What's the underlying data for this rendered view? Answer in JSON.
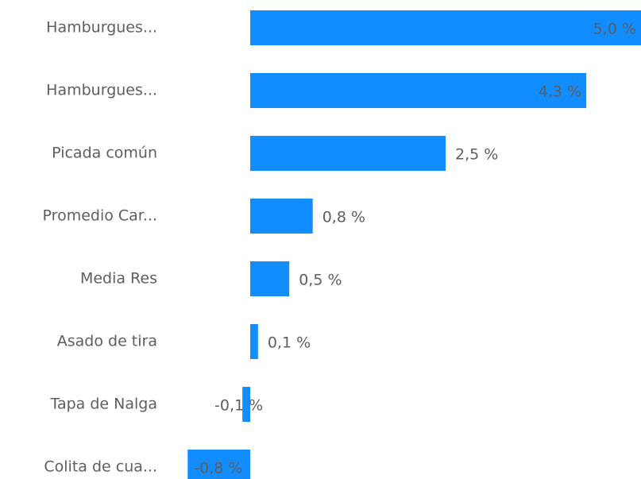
{
  "chart_data": {
    "type": "hbar",
    "categories": [
      "Hamburgues...",
      "Hamburgues...",
      "Picada común",
      "Promedio Car...",
      "Media Res",
      "Asado de tira",
      "Tapa de Nalga",
      "Colita de cua..."
    ],
    "values": [
      5.0,
      4.3,
      2.5,
      0.8,
      0.5,
      0.1,
      -0.1,
      -0.8
    ],
    "value_labels": [
      "5,0 %",
      "4,3 %",
      "2,5 %",
      "0,8 %",
      "0,5 %",
      "0,1 %",
      "-0,1 %",
      "-0,8 %"
    ],
    "color": "#118dff"
  }
}
